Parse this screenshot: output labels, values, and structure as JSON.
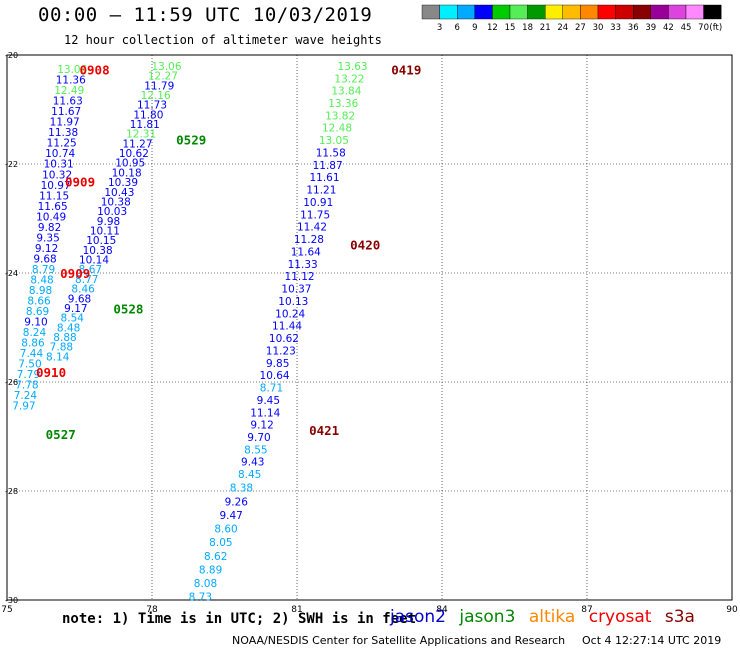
{
  "header": {
    "title": "00:00 – 11:59 UTC 10/03/2019",
    "subtitle": "12 hour collection of altimeter wave heights"
  },
  "colorbar": {
    "labels": [
      "3",
      "6",
      "9",
      "12",
      "15",
      "18",
      "21",
      "24",
      "27",
      "30",
      "33",
      "36",
      "39",
      "42",
      "45",
      "70"
    ],
    "colors": [
      "#888888",
      "#00eeff",
      "#00aaff",
      "#0000ff",
      "#00cc00",
      "#55ee55",
      "#009900",
      "#ffee00",
      "#ffbb00",
      "#ff8800",
      "#ff0000",
      "#cc0000",
      "#880000",
      "#990099",
      "#dd44dd",
      "#ff88ff",
      "#000000"
    ],
    "unit": "(ft)"
  },
  "footer": {
    "note": "note: 1) Time is in UTC; 2) SWH is in feet",
    "satellites": [
      {
        "name": "jason2",
        "color": "#0000cc"
      },
      {
        "name": "jason3",
        "color": "#008800"
      },
      {
        "name": "altika",
        "color": "#ff8800"
      },
      {
        "name": "cryosat",
        "color": "#ee0000"
      },
      {
        "name": "s3a",
        "color": "#880000"
      }
    ],
    "credit": "NOAA/NESDIS Center for Satellite Applications and Research",
    "timestamp": "Oct  4 12:27:14 UTC 2019"
  },
  "chart_data": {
    "type": "scatter",
    "x_ticks": [
      "75",
      "78",
      "81",
      "84",
      "87",
      "90"
    ],
    "y_ticks": [
      "-20",
      "-22",
      "-24",
      "-26",
      "-28",
      "-30"
    ],
    "xlim": [
      75,
      90
    ],
    "ylim": [
      -30,
      -20
    ],
    "grid": true,
    "tracks": [
      {
        "satellite": "s3a",
        "start": [
          76.35,
          -20.26
        ],
        "end": [
          75.35,
          -26.43
        ],
        "values": [
          "13.06",
          "11.36",
          "12.49",
          "11.63",
          "11.67",
          "11.97",
          "11.38",
          "11.25",
          "10.74",
          "10.31",
          "10.32",
          "10.97",
          "11.15",
          "11.65",
          "10.49",
          "9.82",
          "9.35",
          "9.12",
          "9.68",
          "8.79",
          "8.48",
          "8.98",
          "8.66",
          "8.69",
          "9.10",
          "8.24",
          "8.86",
          "7.44",
          "7.50",
          "7.79",
          "7.78",
          "7.24",
          "7.97"
        ],
        "colors": [
          "#55ee55",
          "#0000ff",
          "#55ee55",
          "#0000ff",
          "#0000ff",
          "#0000ff",
          "#0000ff",
          "#0000ff",
          "#0000ff",
          "#0000ff",
          "#0000ff",
          "#0000ff",
          "#0000ff",
          "#0000ff",
          "#0000ff",
          "#0000ff",
          "#0000ff",
          "#0000ff",
          "#0000ff",
          "#00aaff",
          "#00aaff",
          "#00aaff",
          "#00aaff",
          "#00aaff",
          "#0000ff",
          "#00aaff",
          "#00aaff",
          "#00aaff",
          "#00aaff",
          "#00aaff",
          "#00aaff",
          "#00aaff",
          "#00aaff"
        ]
      },
      {
        "satellite": "jason3",
        "start": [
          78.3,
          -20.2
        ],
        "end": [
          76.05,
          -25.53
        ],
        "values": [
          "13.06",
          "12.27",
          "11.79",
          "12.16",
          "11.73",
          "11.80",
          "11.81",
          "12.31",
          "11.27",
          "10.62",
          "10.95",
          "10.18",
          "10.39",
          "10.43",
          "10.38",
          "10.03",
          "9.98",
          "10.11",
          "10.15",
          "10.38",
          "10.14",
          "8.67",
          "8.77",
          "8.46",
          "9.68",
          "9.17",
          "8.54",
          "8.48",
          "8.88",
          "7.88",
          "8.14"
        ],
        "colors": [
          "#55ee55",
          "#55ee55",
          "#0000ff",
          "#55ee55",
          "#0000ff",
          "#0000ff",
          "#0000ff",
          "#55ee55",
          "#0000ff",
          "#0000ff",
          "#0000ff",
          "#0000ff",
          "#0000ff",
          "#0000ff",
          "#0000ff",
          "#0000ff",
          "#0000ff",
          "#0000ff",
          "#0000ff",
          "#0000ff",
          "#0000ff",
          "#00aaff",
          "#00aaff",
          "#00aaff",
          "#0000ff",
          "#0000ff",
          "#00aaff",
          "#00aaff",
          "#00aaff",
          "#00aaff",
          "#00aaff"
        ]
      },
      {
        "satellite": "s3a",
        "start": [
          82.15,
          -20.2
        ],
        "end": [
          80.02,
          -27.69
        ],
        "values": [
          "13.63",
          "13.22",
          "13.84",
          "13.36",
          "13.82",
          "12.48",
          "13.05",
          "11.58",
          "11.87",
          "11.61",
          "11.21",
          "10.91",
          "11.75",
          "11.42",
          "11.28",
          "11.64",
          "11.33",
          "11.12",
          "10.37",
          "10.13",
          "10.24",
          "11.44",
          "10.62",
          "11.23",
          "9.85",
          "10.64",
          "8.71",
          "9.45",
          "11.14",
          "9.12",
          "9.70",
          "8.55",
          "9.43",
          "8.45"
        ],
        "colors": [
          "#55ee55",
          "#55ee55",
          "#55ee55",
          "#55ee55",
          "#55ee55",
          "#55ee55",
          "#55ee55",
          "#0000ff",
          "#0000ff",
          "#0000ff",
          "#0000ff",
          "#0000ff",
          "#0000ff",
          "#0000ff",
          "#0000ff",
          "#0000ff",
          "#0000ff",
          "#0000ff",
          "#0000ff",
          "#0000ff",
          "#0000ff",
          "#0000ff",
          "#0000ff",
          "#0000ff",
          "#0000ff",
          "#0000ff",
          "#00aaff",
          "#0000ff",
          "#0000ff",
          "#0000ff",
          "#0000ff",
          "#00aaff",
          "#0000ff",
          "#00aaff"
        ]
      },
      {
        "satellite": "s3a",
        "start": [
          79.85,
          -27.94
        ],
        "end": [
          79.0,
          -29.94
        ],
        "values": [
          "8.38",
          "9.26",
          "9.47",
          "8.60",
          "8.05",
          "8.62",
          "8.89",
          "8.08",
          "8.73"
        ],
        "colors": [
          "#00aaff",
          "#0000ff",
          "#0000ff",
          "#00aaff",
          "#00aaff",
          "#00aaff",
          "#00aaff",
          "#00aaff",
          "#00aaff"
        ]
      }
    ],
    "time_labels": [
      {
        "text": "0908",
        "x": 76.5,
        "y": -20.27,
        "color": "#ee0000"
      },
      {
        "text": "0909",
        "x": 76.2,
        "y": -22.32,
        "color": "#ee0000"
      },
      {
        "text": "0909",
        "x": 76.1,
        "y": -24.0,
        "color": "#ee0000"
      },
      {
        "text": "0910",
        "x": 75.6,
        "y": -25.82,
        "color": "#ee0000"
      },
      {
        "text": "0529",
        "x": 78.5,
        "y": -21.55,
        "color": "#008800"
      },
      {
        "text": "0528",
        "x": 77.2,
        "y": -24.65,
        "color": "#008800"
      },
      {
        "text": "0527",
        "x": 75.8,
        "y": -26.95,
        "color": "#008800"
      },
      {
        "text": "0419",
        "x": 82.95,
        "y": -20.27,
        "color": "#880000"
      },
      {
        "text": "0420",
        "x": 82.1,
        "y": -23.48,
        "color": "#880000"
      },
      {
        "text": "0421",
        "x": 81.25,
        "y": -26.88,
        "color": "#880000"
      }
    ]
  }
}
